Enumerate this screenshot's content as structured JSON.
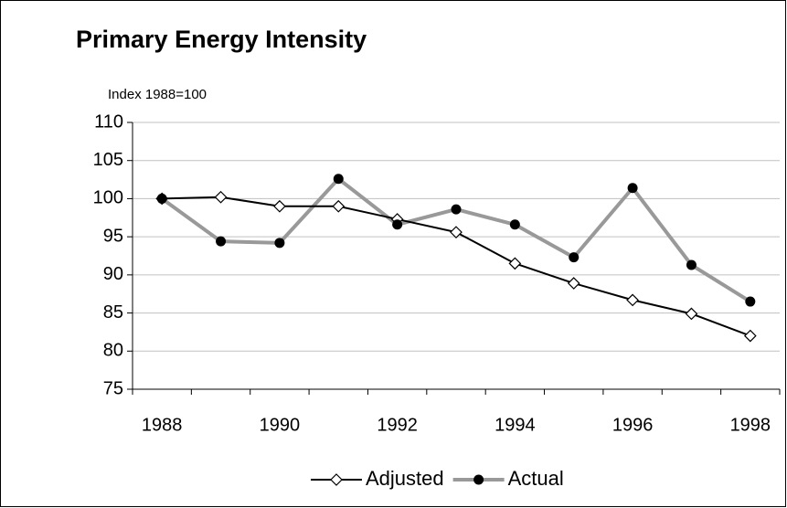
{
  "chart_data": {
    "type": "line",
    "title": "Primary Energy Intensity",
    "y_label": "Index 1988=100",
    "categories": [
      "1988",
      null,
      "1990",
      null,
      "1992",
      null,
      "1994",
      null,
      "1996",
      null,
      "1998"
    ],
    "series": [
      {
        "name": "Adjusted",
        "color": "#000000",
        "marker": "diamond",
        "values": [
          100,
          100.2,
          99,
          99,
          97.3,
          95.6,
          91.5,
          88.9,
          86.7,
          84.9,
          82
        ]
      },
      {
        "name": "Actual",
        "color": "#999999",
        "marker": "circle",
        "values": [
          100,
          94.4,
          94.2,
          102.6,
          96.6,
          98.6,
          96.6,
          92.3,
          101.4,
          91.3,
          86.5
        ]
      }
    ],
    "ylim": [
      75,
      110
    ],
    "yticks": [
      75,
      80,
      85,
      90,
      95,
      100,
      105,
      110
    ],
    "grid": true,
    "legend": "bottom"
  }
}
